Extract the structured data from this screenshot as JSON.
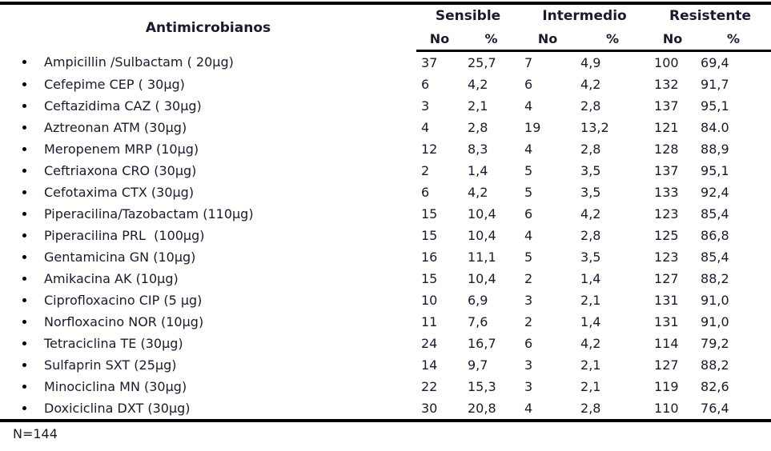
{
  "table": {
    "name_header": "Antimicrobianos",
    "groups": [
      {
        "label": "Sensible"
      },
      {
        "label": "Intermedio"
      },
      {
        "label": "Resistente"
      }
    ],
    "subheaders": [
      "No",
      "%",
      "No",
      "%",
      "No",
      "%"
    ],
    "rows": [
      {
        "name": "Ampicillin /Sulbactam ( 20µg)",
        "s_no": "37",
        "s_pct": "25,7",
        "i_no": "7",
        "i_pct": "4,9",
        "r_no": "100",
        "r_pct": "69,4"
      },
      {
        "name": "Cefepime CEP ( 30µg)",
        "s_no": "6",
        "s_pct": "4,2",
        "i_no": "6",
        "i_pct": "4,2",
        "r_no": "132",
        "r_pct": "91,7"
      },
      {
        "name": "Ceftazidima CAZ ( 30µg)",
        "s_no": "3",
        "s_pct": "2,1",
        "i_no": "4",
        "i_pct": "2,8",
        "r_no": "137",
        "r_pct": "95,1"
      },
      {
        "name": "Aztreonan ATM (30µg)",
        "s_no": "4",
        "s_pct": "2,8",
        "i_no": "19",
        "i_pct": "13,2",
        "r_no": "121",
        "r_pct": "84.0"
      },
      {
        "name": "Meropenem MRP (10µg)",
        "s_no": "12",
        "s_pct": "8,3",
        "i_no": "4",
        "i_pct": "2,8",
        "r_no": "128",
        "r_pct": "88,9"
      },
      {
        "name": "Ceftriaxona CRO (30µg)",
        "s_no": "2",
        "s_pct": "1,4",
        "i_no": "5",
        "i_pct": "3,5",
        "r_no": "137",
        "r_pct": "95,1"
      },
      {
        "name": "Cefotaxima CTX (30µg)",
        "s_no": "6",
        "s_pct": "4,2",
        "i_no": "5",
        "i_pct": "3,5",
        "r_no": "133",
        "r_pct": "92,4"
      },
      {
        "name": "Piperacilina/Tazobactam (110µg)",
        "s_no": "15",
        "s_pct": "10,4",
        "i_no": "6",
        "i_pct": "4,2",
        "r_no": "123",
        "r_pct": "85,4"
      },
      {
        "name": "Piperacilina PRL  (100µg)",
        "s_no": "15",
        "s_pct": "10,4",
        "i_no": "4",
        "i_pct": "2,8",
        "r_no": "125",
        "r_pct": "86,8"
      },
      {
        "name": "Gentamicina GN (10µg)",
        "s_no": "16",
        "s_pct": "11,1",
        "i_no": "5",
        "i_pct": "3,5",
        "r_no": "123",
        "r_pct": "85,4"
      },
      {
        "name": "Amikacina AK (10µg)",
        "s_no": "15",
        "s_pct": "10,4",
        "i_no": "2",
        "i_pct": "1,4",
        "r_no": "127",
        "r_pct": "88,2"
      },
      {
        "name": "Ciprofloxacino CIP (5 µg)",
        "s_no": "10",
        "s_pct": "6,9",
        "i_no": "3",
        "i_pct": "2,1",
        "r_no": "131",
        "r_pct": "91,0"
      },
      {
        "name": "Norfloxacino NOR (10µg)",
        "s_no": "11",
        "s_pct": "7,6",
        "i_no": "2",
        "i_pct": "1,4",
        "r_no": "131",
        "r_pct": "91,0"
      },
      {
        "name": "Tetraciclina TE (30µg)",
        "s_no": "24",
        "s_pct": "16,7",
        "i_no": "6",
        "i_pct": "4,2",
        "r_no": "114",
        "r_pct": "79,2"
      },
      {
        "name": "Sulfaprin SXT (25µg)",
        "s_no": "14",
        "s_pct": "9,7",
        "i_no": "3",
        "i_pct": "2,1",
        "r_no": "127",
        "r_pct": "88,2"
      },
      {
        "name": "Minociclina MN (30µg)",
        "s_no": "22",
        "s_pct": "15,3",
        "i_no": "3",
        "i_pct": "2,1",
        "r_no": "119",
        "r_pct": "82,6"
      },
      {
        "name": "Doxiciclina DXT (30µg)",
        "s_no": "30",
        "s_pct": "20,8",
        "i_no": "4",
        "i_pct": "2,8",
        "r_no": "110",
        "r_pct": "76,4"
      }
    ],
    "footer_note": "N=144"
  }
}
